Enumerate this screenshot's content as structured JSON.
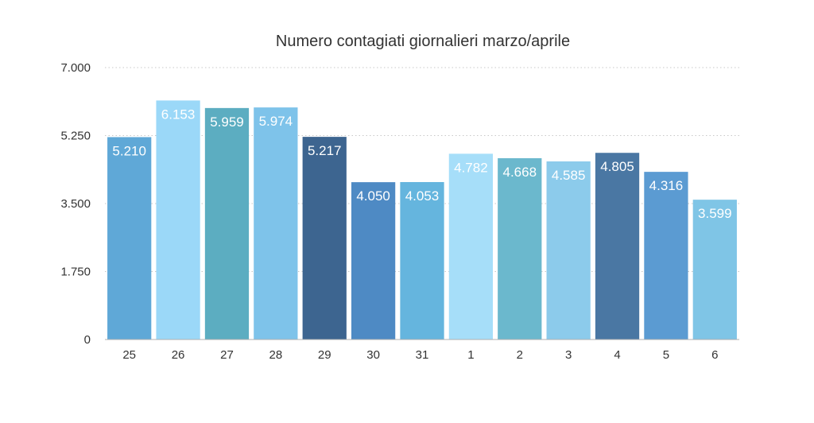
{
  "chart_data": {
    "type": "bar",
    "title": "Numero contagiati giornalieri marzo/aprile",
    "xlabel": "",
    "ylabel": "",
    "categories": [
      "25",
      "26",
      "27",
      "28",
      "29",
      "30",
      "31",
      "1",
      "2",
      "3",
      "4",
      "5",
      "6"
    ],
    "values": [
      5210,
      6153,
      5959,
      5974,
      5217,
      4050,
      4053,
      4782,
      4668,
      4585,
      4805,
      4316,
      3599
    ],
    "value_labels": [
      "5.210",
      "6.153",
      "5.959",
      "5.974",
      "5.217",
      "4.050",
      "4.053",
      "4.782",
      "4.668",
      "4.585",
      "4.805",
      "4.316",
      "3.599"
    ],
    "ylim": [
      0,
      7000
    ],
    "yticks": [
      0,
      1750,
      3500,
      5250,
      7000
    ],
    "ytick_labels": [
      "0",
      "1.750",
      "3.500",
      "5.250",
      "7.000"
    ],
    "grid": true,
    "legend": "none",
    "bar_colors": [
      "#5fa8d7",
      "#9bd8f8",
      "#5cadc1",
      "#7ec3ea",
      "#3d6590",
      "#4e8ac4",
      "#65b5de",
      "#a6def9",
      "#6bb8cd",
      "#8ccbeb",
      "#4a77a3",
      "#5b9bd2",
      "#7fc5e6"
    ]
  }
}
